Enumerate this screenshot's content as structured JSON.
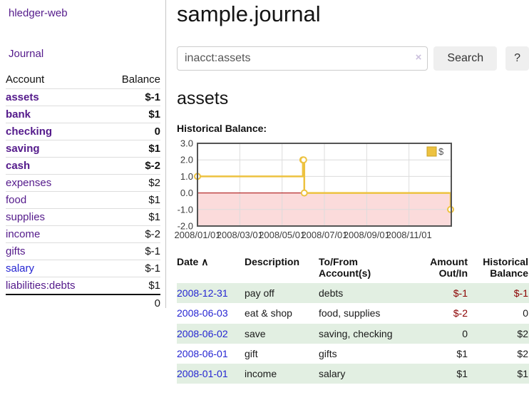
{
  "app": {
    "title": "hledger-web"
  },
  "sidebar": {
    "journal_label": "Journal",
    "accounts": {
      "col_account": "Account",
      "col_balance": "Balance",
      "rows": [
        {
          "name": "assets",
          "indent": 1,
          "bold": true,
          "balance": "$-1",
          "balance_style": "negative"
        },
        {
          "name": "bank",
          "indent": 2,
          "bold": true,
          "balance": "$1",
          "balance_style": "normal"
        },
        {
          "name": "checking",
          "indent": 3,
          "bold": true,
          "balance": "0",
          "balance_style": "normal"
        },
        {
          "name": "saving",
          "indent": 3,
          "bold": true,
          "balance": "$1",
          "balance_style": "normal"
        },
        {
          "name": "cash",
          "indent": 2,
          "bold": true,
          "balance": "$-2",
          "balance_style": "negative"
        },
        {
          "name": "expenses",
          "indent": 1,
          "bold": false,
          "balance": "$2",
          "balance_style": "normal"
        },
        {
          "name": "food",
          "indent": 2,
          "bold": false,
          "balance": "$1",
          "balance_style": "normal"
        },
        {
          "name": "supplies",
          "indent": 2,
          "bold": false,
          "balance": "$1",
          "balance_style": "normal"
        },
        {
          "name": "income",
          "indent": 1,
          "bold": false,
          "balance": "$-2",
          "balance_style": "negative-faded"
        },
        {
          "name": "gifts",
          "indent": 2,
          "bold": false,
          "balance": "$-1",
          "balance_style": "negative-faded"
        },
        {
          "name": "salary",
          "indent": 2,
          "bold": false,
          "balance": "$-1",
          "balance_style": "negative-faded",
          "link_style": "blue"
        },
        {
          "name": "liabilities:debts",
          "indent": 1,
          "bold": false,
          "balance": "$1",
          "balance_style": "normal"
        }
      ],
      "total": "0"
    }
  },
  "main": {
    "title": "sample.journal",
    "search": {
      "value": "inacct:assets",
      "clear_icon": "×",
      "button_label": "Search",
      "help_label": "?"
    },
    "account_heading": "assets",
    "chart_heading": "Historical Balance:"
  },
  "chart_data": {
    "type": "line",
    "step": true,
    "title": "Historical Balance",
    "series": [
      {
        "name": "$",
        "color": "#edc240",
        "points": [
          [
            "2008-01-01",
            1
          ],
          [
            "2008-06-01",
            2
          ],
          [
            "2008-06-02",
            2
          ],
          [
            "2008-06-03",
            0
          ],
          [
            "2008-12-31",
            -1
          ]
        ]
      }
    ],
    "x_range": [
      "2008-01-01",
      "2009-01-01"
    ],
    "x_tick_labels": [
      "2008/01/01",
      "2008/03/01",
      "2008/05/01",
      "2008/07/01",
      "2008/09/01",
      "2008/11/01"
    ],
    "y_ticks": [
      "3.0",
      "2.0",
      "1.0",
      "0.0",
      "-1.0",
      "-2.0"
    ],
    "ylim": [
      -2,
      3
    ],
    "grid": true,
    "legend": {
      "label": "$",
      "position": "top-right",
      "swatch_color": "#edc240"
    },
    "negative_region_color": "#fbdbdb",
    "zero_line_color": "#a40000",
    "border_color": "#545454",
    "grid_color": "#dcdcdc"
  },
  "register": {
    "headers": {
      "date": "Date",
      "sort_icon": "∧",
      "description": "Description",
      "accounts": "To/From Account(s)",
      "amount": "Amount Out/In",
      "balance": "Historical Balance"
    },
    "rows": [
      {
        "date": "2008-12-31",
        "description": "pay off",
        "accounts": "debts",
        "amount": "$-1",
        "amount_style": "negative",
        "balance": "$-1",
        "balance_style": "negative"
      },
      {
        "date": "2008-06-03",
        "description": "eat & shop",
        "accounts": "food, supplies",
        "amount": "$-2",
        "amount_style": "negative",
        "balance": "0",
        "balance_style": "normal"
      },
      {
        "date": "2008-06-02",
        "description": "save",
        "accounts": "saving, checking",
        "amount": "0",
        "amount_style": "normal",
        "balance": "$2",
        "balance_style": "normal"
      },
      {
        "date": "2008-06-01",
        "description": "gift",
        "accounts": "gifts",
        "amount": "$1",
        "amount_style": "normal",
        "balance": "$2",
        "balance_style": "normal"
      },
      {
        "date": "2008-01-01",
        "description": "income",
        "accounts": "salary",
        "amount": "$1",
        "amount_style": "normal",
        "balance": "$1",
        "balance_style": "normal"
      }
    ]
  },
  "colors": {
    "link_purple": "#541a8b",
    "link_blue": "#2525d2",
    "negative": "#8b0000",
    "negative_faded": "#bd7575",
    "row_stripe_green": "#e2efe2"
  }
}
